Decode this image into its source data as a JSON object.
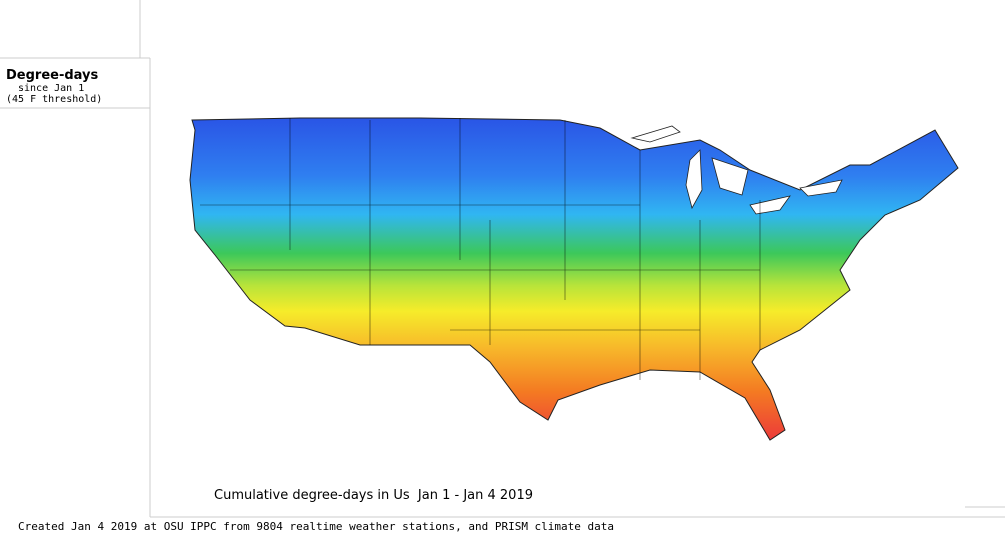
{
  "legend": {
    "title": "Degree-days",
    "subtitle": "since Jan 1",
    "note": "(45 F threshold)"
  },
  "map": {
    "title": "Cumulative degree-days in Us  Jan 1 - Jan 4 2019"
  },
  "footer": {
    "credit": "Created Jan 4 2019 at OSU IPPC from 9804 realtime weather stations, and PRISM climate data"
  }
}
